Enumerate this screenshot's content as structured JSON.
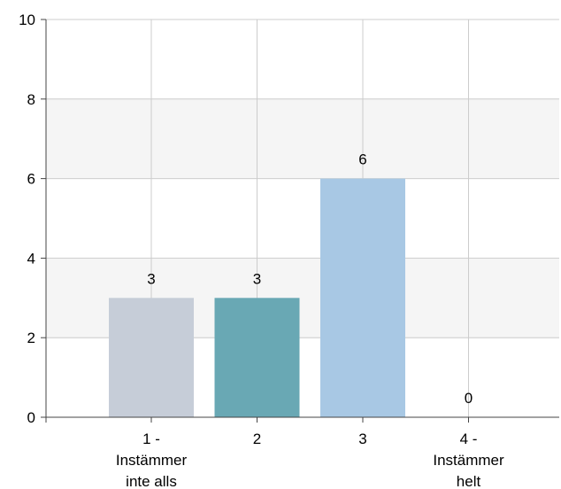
{
  "chart_data": {
    "type": "bar",
    "categories": [
      [
        "1 -",
        "Instämmer",
        "inte alls"
      ],
      [
        "2"
      ],
      [
        "3"
      ],
      [
        "4 -",
        "Instämmer",
        "helt"
      ]
    ],
    "values": [
      3,
      3,
      6,
      0
    ],
    "data_labels": [
      "3",
      "3",
      "6",
      "0"
    ],
    "bar_colors": [
      "#c6cdd8",
      "#69a8b4",
      "#a8c8e4",
      "#a8c8e4"
    ],
    "band_color": "#f5f5f5",
    "grid_color": "#cccccc",
    "axis_color": "#444444",
    "ylim": [
      0,
      10
    ],
    "yticks": [
      0,
      2,
      4,
      6,
      8,
      10
    ],
    "banded_background": true,
    "grid": true
  }
}
